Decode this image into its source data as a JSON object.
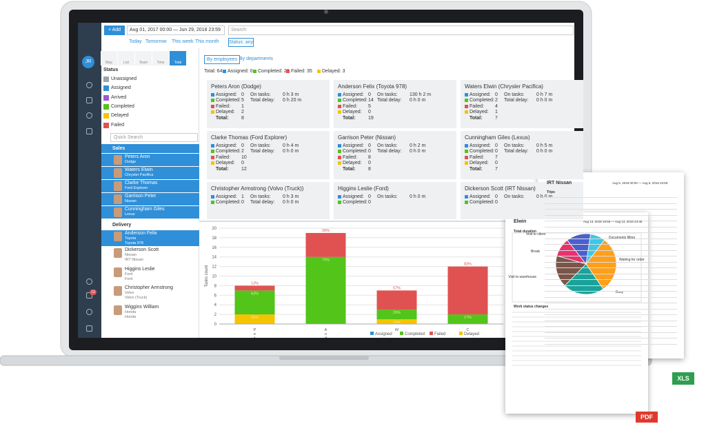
{
  "toolbar": {
    "add": "+ Add",
    "date_range": "Aug 01, 2017 00:00 — Jun 29, 2018 23:59",
    "search": "Search",
    "quick": [
      "Today",
      "Tomorrow",
      "This week",
      "This month"
    ],
    "status": "Status: any"
  },
  "user_initials": "JR",
  "notifications": "13",
  "view_tabs": [
    "Map",
    "List",
    "Team",
    "Time",
    "Total"
  ],
  "status_filter": {
    "title": "Status",
    "items": [
      "Unassigned",
      "Assigned",
      "Arrived",
      "Completed",
      "Delayed",
      "Failed"
    ],
    "colors": [
      "#9aa4ad",
      "#2f8fd8",
      "#9b59d0",
      "#52c41a",
      "#f5c400",
      "#e05252"
    ]
  },
  "quick_search": "Quick Search",
  "groups": [
    {
      "name": "Sales",
      "members": [
        {
          "name": "Peters Aron",
          "lines": [
            "Dodge"
          ]
        },
        {
          "name": "Waters Elwin",
          "lines": [
            "Chrysler Pacifica"
          ]
        },
        {
          "name": "Clarke Thomas",
          "lines": [
            "Ford Explorer"
          ]
        },
        {
          "name": "Garrison Peter",
          "lines": [
            "Nissan"
          ]
        },
        {
          "name": "Cunningham Giles",
          "lines": [
            "Lexus"
          ]
        }
      ]
    },
    {
      "name": "Delivery",
      "members": [
        {
          "name": "Anderson Felix",
          "lines": [
            "Toyota",
            "Toyota 978"
          ]
        },
        {
          "name": "Dickerson Scott",
          "lines": [
            "Nissan",
            "IRT Nissan"
          ]
        },
        {
          "name": "Higgins Leslie",
          "lines": [
            "Ford",
            "Ford"
          ]
        },
        {
          "name": "Christopher Armstrong",
          "lines": [
            "Volvo",
            "Volvo (Truck)"
          ]
        },
        {
          "name": "Wiggins William",
          "lines": [
            "Honda",
            "Honda"
          ]
        }
      ]
    }
  ],
  "group_tabs": [
    "By employees",
    "By departments"
  ],
  "totals": {
    "total": "Total: 64",
    "items": [
      "Assigned: 0",
      "Completed: 26",
      "Failed: 35",
      "Delayed: 3"
    ]
  },
  "card_labels": {
    "counts": [
      "Assigned:",
      "Completed:",
      "Failed:",
      "Delayed:",
      "Total:"
    ],
    "times": [
      "On tasks:",
      "Total delay:"
    ]
  },
  "cards": [
    {
      "title": "Peters Aron (Dodge)",
      "counts": [
        0,
        5,
        1,
        2,
        8
      ],
      "times": [
        "0 h 3 m",
        "0 h 20 m"
      ]
    },
    {
      "title": "Anderson Felix (Toyota 978)",
      "counts": [
        0,
        14,
        5,
        0,
        19
      ],
      "times": [
        "130 h 2 m",
        "0 h 0 m"
      ]
    },
    {
      "title": "Waters Elwin (Chrysler Pacifica)",
      "counts": [
        0,
        2,
        4,
        1,
        7
      ],
      "times": [
        "0 h 7 m",
        "0 h 0 m"
      ]
    },
    {
      "title": "Clarke Thomas (Ford Explorer)",
      "counts": [
        0,
        2,
        10,
        0,
        12
      ],
      "times": [
        "0 h 4 m",
        "0 h 0 m"
      ]
    },
    {
      "title": "Garrison Peter (Nissan)",
      "counts": [
        0,
        0,
        8,
        0,
        8
      ],
      "times": [
        "0 h 2 m",
        "0 h 0 m"
      ]
    },
    {
      "title": "Cunningham Giles (Lexus)",
      "counts": [
        0,
        0,
        7,
        0,
        7
      ],
      "times": [
        "0 h 5 m",
        "0 h 0 m"
      ]
    },
    {
      "title": "Christopher Armstrong (Volvo (Truck))",
      "counts": [
        1,
        0
      ],
      "times": [
        "0 h 3 m",
        "0 h 0 m"
      ]
    },
    {
      "title": "Higgins Leslie (Ford)",
      "counts": [
        0,
        0
      ],
      "times": [
        "0 h 0 m"
      ]
    },
    {
      "title": "Dickerson Scott (IRT Nissan)",
      "counts": [
        0,
        0
      ],
      "times": [
        "0 h 0 m"
      ]
    }
  ],
  "chart": {
    "type": "bar",
    "y_label": "Tasks count",
    "categories": [
      "Pet",
      "And",
      "W",
      "C"
    ],
    "ylim": [
      0,
      20
    ],
    "yticks": [
      0,
      2,
      4,
      6,
      8,
      10,
      12,
      14,
      16,
      18,
      20
    ],
    "series": [
      {
        "name": "Assigned",
        "color": "#2f8fd8",
        "values": [
          0,
          0,
          0,
          0
        ]
      },
      {
        "name": "Completed",
        "color": "#52c41a",
        "values": [
          5,
          14,
          2,
          2
        ],
        "value_labels": [
          "63%",
          "74%",
          "29%",
          "17%"
        ]
      },
      {
        "name": "Failed",
        "color": "#e05252",
        "values": [
          1,
          5,
          4,
          10
        ],
        "value_labels": [
          "13%",
          "26%",
          "57%",
          "83%"
        ]
      },
      {
        "name": "Delayed",
        "color": "#f5c400",
        "values": [
          2,
          0,
          1,
          0
        ],
        "value_labels": [
          "25%",
          null,
          "14%",
          null
        ]
      }
    ]
  },
  "report_xls": {
    "title": "IRT Nissan",
    "date": "Aug 5, 2018 00:00 — Aug 5, 2018 23:59",
    "section": "Trips",
    "badge": "XLS"
  },
  "report_pdf": {
    "title": "Elwin",
    "date": "Aug 13, 2018 16:55 — Aug 13, 2018 23:45",
    "section": "Total duration",
    "section2": "Work status changes",
    "badge": "PDF",
    "pie": {
      "type": "pie",
      "categories": [
        "Documents filling",
        "Waiting for order",
        "Busy",
        "Visit to warehouse",
        "Break",
        "Visit to client"
      ],
      "values": [
        8,
        30,
        22,
        17,
        10,
        13
      ],
      "colors": [
        "#3cc8e6",
        "#ff9f1a",
        "#1aa39a",
        "#7a5548",
        "#e8316e",
        "#4a5fcf"
      ]
    }
  }
}
